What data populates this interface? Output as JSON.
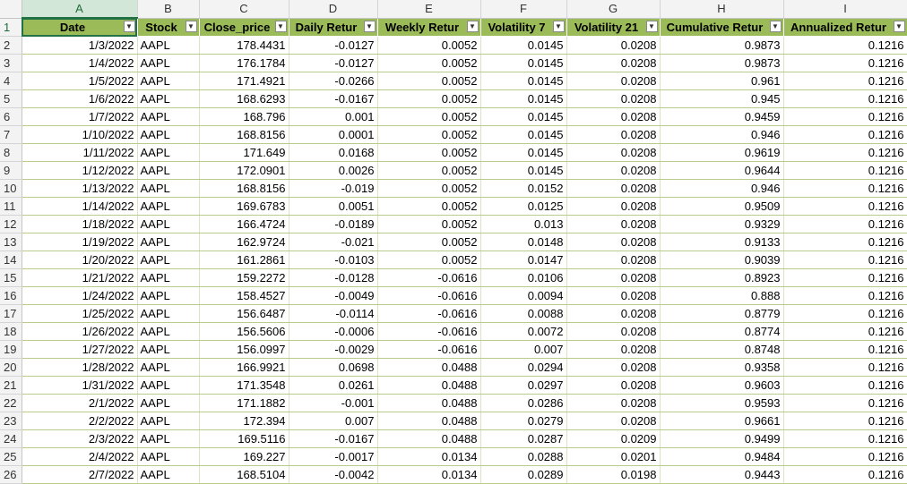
{
  "columns": [
    "A",
    "B",
    "C",
    "D",
    "E",
    "F",
    "G",
    "H",
    "I"
  ],
  "headers": [
    "Date",
    "Stock",
    "Close_price",
    "Daily Retur",
    "Weekly Retur",
    "Volatility 7",
    "Volatility 21",
    "Cumulative Retur",
    "Annualized Retur"
  ],
  "filter_icon": "filter-dropdown-icon",
  "header_row_number": "1",
  "rows": [
    {
      "n": "2",
      "date": "1/3/2022",
      "stock": "AAPL",
      "close": "178.4431",
      "daily": "-0.0127",
      "weekly": "0.0052",
      "vol7": "0.0145",
      "vol21": "0.0208",
      "cum": "0.9873",
      "ann": "0.1216"
    },
    {
      "n": "3",
      "date": "1/4/2022",
      "stock": "AAPL",
      "close": "176.1784",
      "daily": "-0.0127",
      "weekly": "0.0052",
      "vol7": "0.0145",
      "vol21": "0.0208",
      "cum": "0.9873",
      "ann": "0.1216"
    },
    {
      "n": "4",
      "date": "1/5/2022",
      "stock": "AAPL",
      "close": "171.4921",
      "daily": "-0.0266",
      "weekly": "0.0052",
      "vol7": "0.0145",
      "vol21": "0.0208",
      "cum": "0.961",
      "ann": "0.1216"
    },
    {
      "n": "5",
      "date": "1/6/2022",
      "stock": "AAPL",
      "close": "168.6293",
      "daily": "-0.0167",
      "weekly": "0.0052",
      "vol7": "0.0145",
      "vol21": "0.0208",
      "cum": "0.945",
      "ann": "0.1216"
    },
    {
      "n": "6",
      "date": "1/7/2022",
      "stock": "AAPL",
      "close": "168.796",
      "daily": "0.001",
      "weekly": "0.0052",
      "vol7": "0.0145",
      "vol21": "0.0208",
      "cum": "0.9459",
      "ann": "0.1216"
    },
    {
      "n": "7",
      "date": "1/10/2022",
      "stock": "AAPL",
      "close": "168.8156",
      "daily": "0.0001",
      "weekly": "0.0052",
      "vol7": "0.0145",
      "vol21": "0.0208",
      "cum": "0.946",
      "ann": "0.1216"
    },
    {
      "n": "8",
      "date": "1/11/2022",
      "stock": "AAPL",
      "close": "171.649",
      "daily": "0.0168",
      "weekly": "0.0052",
      "vol7": "0.0145",
      "vol21": "0.0208",
      "cum": "0.9619",
      "ann": "0.1216"
    },
    {
      "n": "9",
      "date": "1/12/2022",
      "stock": "AAPL",
      "close": "172.0901",
      "daily": "0.0026",
      "weekly": "0.0052",
      "vol7": "0.0145",
      "vol21": "0.0208",
      "cum": "0.9644",
      "ann": "0.1216"
    },
    {
      "n": "10",
      "date": "1/13/2022",
      "stock": "AAPL",
      "close": "168.8156",
      "daily": "-0.019",
      "weekly": "0.0052",
      "vol7": "0.0152",
      "vol21": "0.0208",
      "cum": "0.946",
      "ann": "0.1216"
    },
    {
      "n": "11",
      "date": "1/14/2022",
      "stock": "AAPL",
      "close": "169.6783",
      "daily": "0.0051",
      "weekly": "0.0052",
      "vol7": "0.0125",
      "vol21": "0.0208",
      "cum": "0.9509",
      "ann": "0.1216"
    },
    {
      "n": "12",
      "date": "1/18/2022",
      "stock": "AAPL",
      "close": "166.4724",
      "daily": "-0.0189",
      "weekly": "0.0052",
      "vol7": "0.013",
      "vol21": "0.0208",
      "cum": "0.9329",
      "ann": "0.1216"
    },
    {
      "n": "13",
      "date": "1/19/2022",
      "stock": "AAPL",
      "close": "162.9724",
      "daily": "-0.021",
      "weekly": "0.0052",
      "vol7": "0.0148",
      "vol21": "0.0208",
      "cum": "0.9133",
      "ann": "0.1216"
    },
    {
      "n": "14",
      "date": "1/20/2022",
      "stock": "AAPL",
      "close": "161.2861",
      "daily": "-0.0103",
      "weekly": "0.0052",
      "vol7": "0.0147",
      "vol21": "0.0208",
      "cum": "0.9039",
      "ann": "0.1216"
    },
    {
      "n": "15",
      "date": "1/21/2022",
      "stock": "AAPL",
      "close": "159.2272",
      "daily": "-0.0128",
      "weekly": "-0.0616",
      "vol7": "0.0106",
      "vol21": "0.0208",
      "cum": "0.8923",
      "ann": "0.1216"
    },
    {
      "n": "16",
      "date": "1/24/2022",
      "stock": "AAPL",
      "close": "158.4527",
      "daily": "-0.0049",
      "weekly": "-0.0616",
      "vol7": "0.0094",
      "vol21": "0.0208",
      "cum": "0.888",
      "ann": "0.1216"
    },
    {
      "n": "17",
      "date": "1/25/2022",
      "stock": "AAPL",
      "close": "156.6487",
      "daily": "-0.0114",
      "weekly": "-0.0616",
      "vol7": "0.0088",
      "vol21": "0.0208",
      "cum": "0.8779",
      "ann": "0.1216"
    },
    {
      "n": "18",
      "date": "1/26/2022",
      "stock": "AAPL",
      "close": "156.5606",
      "daily": "-0.0006",
      "weekly": "-0.0616",
      "vol7": "0.0072",
      "vol21": "0.0208",
      "cum": "0.8774",
      "ann": "0.1216"
    },
    {
      "n": "19",
      "date": "1/27/2022",
      "stock": "AAPL",
      "close": "156.0997",
      "daily": "-0.0029",
      "weekly": "-0.0616",
      "vol7": "0.007",
      "vol21": "0.0208",
      "cum": "0.8748",
      "ann": "0.1216"
    },
    {
      "n": "20",
      "date": "1/28/2022",
      "stock": "AAPL",
      "close": "166.9921",
      "daily": "0.0698",
      "weekly": "0.0488",
      "vol7": "0.0294",
      "vol21": "0.0208",
      "cum": "0.9358",
      "ann": "0.1216"
    },
    {
      "n": "21",
      "date": "1/31/2022",
      "stock": "AAPL",
      "close": "171.3548",
      "daily": "0.0261",
      "weekly": "0.0488",
      "vol7": "0.0297",
      "vol21": "0.0208",
      "cum": "0.9603",
      "ann": "0.1216"
    },
    {
      "n": "22",
      "date": "2/1/2022",
      "stock": "AAPL",
      "close": "171.1882",
      "daily": "-0.001",
      "weekly": "0.0488",
      "vol7": "0.0286",
      "vol21": "0.0208",
      "cum": "0.9593",
      "ann": "0.1216"
    },
    {
      "n": "23",
      "date": "2/2/2022",
      "stock": "AAPL",
      "close": "172.394",
      "daily": "0.007",
      "weekly": "0.0488",
      "vol7": "0.0279",
      "vol21": "0.0208",
      "cum": "0.9661",
      "ann": "0.1216"
    },
    {
      "n": "24",
      "date": "2/3/2022",
      "stock": "AAPL",
      "close": "169.5116",
      "daily": "-0.0167",
      "weekly": "0.0488",
      "vol7": "0.0287",
      "vol21": "0.0209",
      "cum": "0.9499",
      "ann": "0.1216"
    },
    {
      "n": "25",
      "date": "2/4/2022",
      "stock": "AAPL",
      "close": "169.227",
      "daily": "-0.0017",
      "weekly": "0.0134",
      "vol7": "0.0288",
      "vol21": "0.0201",
      "cum": "0.9484",
      "ann": "0.1216"
    },
    {
      "n": "26",
      "date": "2/7/2022",
      "stock": "AAPL",
      "close": "168.5104",
      "daily": "-0.0042",
      "weekly": "0.0134",
      "vol7": "0.0289",
      "vol21": "0.0198",
      "cum": "0.9443",
      "ann": "0.1216"
    }
  ],
  "colors": {
    "header_fill": "#9bbb59",
    "selection": "#217346",
    "grid": "#b9cc8c"
  }
}
